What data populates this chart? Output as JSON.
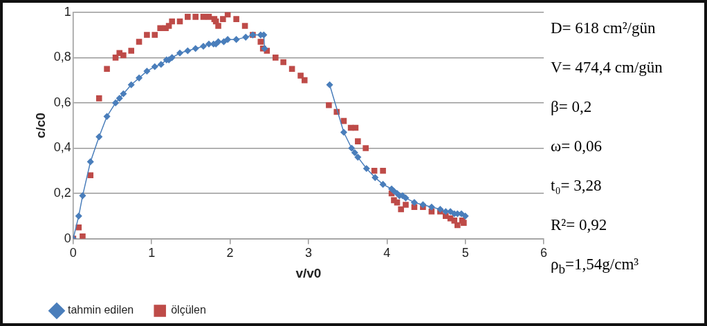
{
  "chart_data": {
    "type": "line",
    "xlabel": "v/v0",
    "ylabel": "c/c0",
    "xlim": [
      0,
      6
    ],
    "xticks": [
      0,
      1,
      2,
      3,
      4,
      5,
      6
    ],
    "ylim": [
      0,
      1
    ],
    "yticks": [
      0,
      {
        "value": 0.2,
        "label": "0,2"
      },
      {
        "value": 0.4,
        "label": "0,4"
      },
      {
        "value": 0.6,
        "label": "0,6"
      },
      {
        "value": 0.8,
        "label": "0,8"
      },
      1
    ],
    "grid": "y",
    "legend": "bottom left",
    "series": [
      {
        "name": "tahmin edilen",
        "type": "line",
        "color": "#4a7ebb",
        "marker": "diamond",
        "line_style": "solid",
        "x": [
          0,
          0.07,
          0.12,
          0.22,
          0.33,
          0.43,
          0.54,
          0.59,
          0.64,
          0.74,
          0.84,
          0.94,
          1.04,
          1.12,
          1.19,
          1.22,
          1.26,
          1.36,
          1.46,
          1.56,
          1.66,
          1.73,
          1.79,
          1.82,
          1.85,
          1.92,
          1.97,
          2.08,
          2.2,
          2.29,
          2.39,
          2.43,
          2.44,
          2.9,
          3.27,
          3.45,
          3.55,
          3.59,
          3.63,
          3.74,
          3.85,
          3.95,
          4.06,
          4.09,
          4.13,
          4.16,
          4.2,
          4.24,
          4.35,
          4.46,
          4.57,
          4.68,
          4.75,
          4.81,
          4.86,
          4.9,
          4.95,
          5.0
        ],
        "values": [
          0,
          0.1,
          0.19,
          0.34,
          0.45,
          0.54,
          0.6,
          0.62,
          0.64,
          0.68,
          0.71,
          0.74,
          0.76,
          0.77,
          0.79,
          0.79,
          0.8,
          0.82,
          0.83,
          0.84,
          0.85,
          0.86,
          0.86,
          0.86,
          0.87,
          0.87,
          0.88,
          0.88,
          0.89,
          0.9,
          0.9,
          0.9,
          0.84,
          null,
          0.68,
          0.47,
          0.4,
          0.38,
          0.36,
          0.31,
          0.27,
          0.24,
          0.22,
          0.21,
          0.2,
          0.19,
          0.19,
          0.18,
          0.16,
          0.15,
          0.14,
          0.13,
          0.12,
          0.12,
          0.11,
          0.11,
          0.11,
          0.1
        ]
      },
      {
        "name": "ölçülen",
        "type": "scatter",
        "color": "#be4b48",
        "marker": "square",
        "x": [
          0,
          0.07,
          0.12,
          0.22,
          0.33,
          0.43,
          0.54,
          0.59,
          0.64,
          0.74,
          0.84,
          0.94,
          1.04,
          1.11,
          1.18,
          1.22,
          1.26,
          1.36,
          1.46,
          1.56,
          1.66,
          1.73,
          1.8,
          1.82,
          1.85,
          1.91,
          1.97,
          2.08,
          2.19,
          2.29,
          2.39,
          2.42,
          2.47,
          2.58,
          2.68,
          2.79,
          2.9,
          2.95,
          3.26,
          3.36,
          3.45,
          3.54,
          3.6,
          3.63,
          3.73,
          3.84,
          3.95,
          4.06,
          4.09,
          4.13,
          4.18,
          4.24,
          4.35,
          4.46,
          4.57,
          4.68,
          4.75,
          4.81,
          4.86,
          4.9,
          4.96,
          4.98
        ],
        "values": [
          0,
          0.05,
          0.01,
          0.28,
          0.62,
          0.75,
          0.8,
          0.82,
          0.81,
          0.83,
          0.87,
          0.9,
          0.9,
          0.93,
          0.93,
          0.94,
          0.96,
          0.96,
          0.98,
          0.98,
          0.98,
          0.98,
          0.97,
          0.96,
          0.94,
          0.97,
          0.99,
          0.97,
          0.94,
          0.9,
          0.87,
          0.84,
          0.83,
          0.8,
          0.78,
          0.75,
          0.72,
          0.7,
          0.59,
          0.56,
          0.52,
          0.49,
          0.49,
          0.43,
          0.4,
          0.3,
          0.3,
          0.2,
          0.17,
          0.16,
          0.13,
          0.15,
          0.14,
          0.14,
          0.12,
          0.12,
          0.1,
          0.09,
          0.08,
          0.06,
          0.08,
          0.07
        ]
      }
    ],
    "annotations": [
      "D= 618 cm²/gün",
      "V= 474,4 cm/gün",
      "β= 0,2",
      "ω= 0,06",
      "t₀= 3,28",
      "R²= 0,92",
      "ρ$_{b}$=1,54g/cm³"
    ]
  }
}
